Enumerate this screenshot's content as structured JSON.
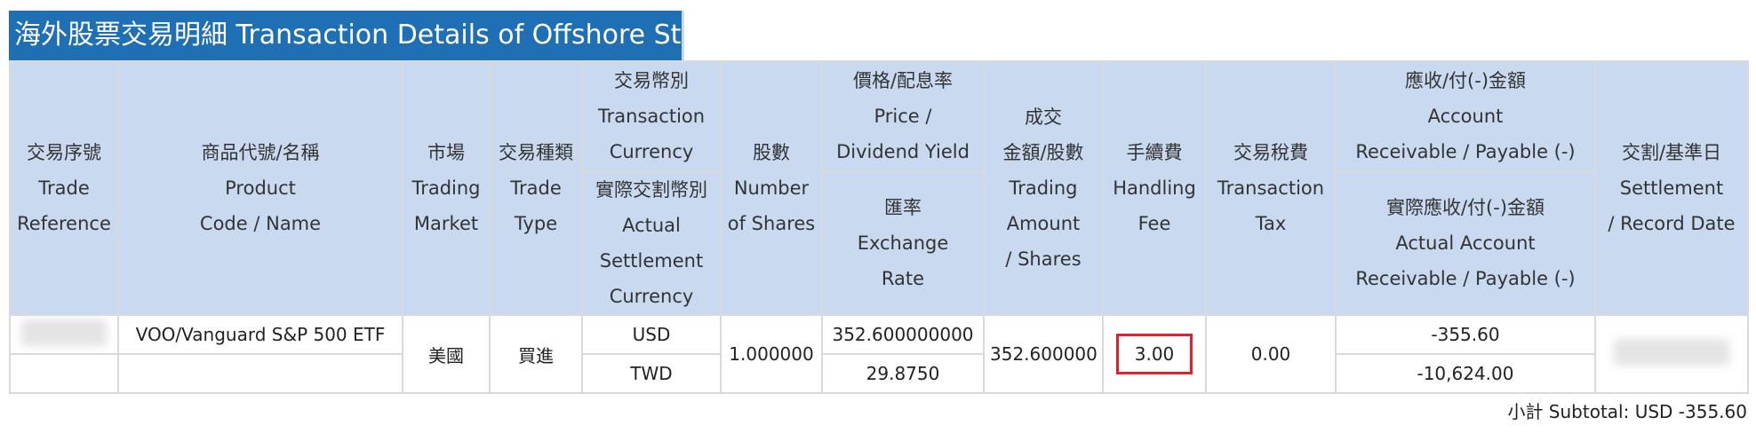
{
  "title": "海外股票交易明細 Transaction Details of Offshore Stocks",
  "headers": {
    "trade_reference": {
      "zh": "交易序號",
      "en1": "Trade",
      "en2": "Reference"
    },
    "product": {
      "zh": "商品代號/名稱",
      "en1": "Product",
      "en2": "Code / Name"
    },
    "market": {
      "zh": "市場",
      "en1": "Trading",
      "en2": "Market"
    },
    "trade_type": {
      "zh": "交易種類",
      "en1": "Trade",
      "en2": "Type"
    },
    "currency": {
      "zh": "交易幣別",
      "en1": "Transaction",
      "en2": "Currency"
    },
    "settle_currency": {
      "zh": "實際交割幣別",
      "en1": "Actual",
      "en2": "Settlement",
      "en3": "Currency"
    },
    "shares": {
      "zh": "股數",
      "en1": "Number",
      "en2": "of Shares"
    },
    "price": {
      "zh": "價格/配息率",
      "en1": "Price /",
      "en2": "Dividend Yield"
    },
    "exchange_rate": {
      "zh": "匯率",
      "en1": "Exchange",
      "en2": "Rate"
    },
    "amount": {
      "zh1": "成交",
      "zh2": "金額/股數",
      "en1": "Trading",
      "en2": "Amount",
      "en3": "/ Shares"
    },
    "fee": {
      "zh": "手續費",
      "en1": "Handling",
      "en2": "Fee"
    },
    "tax": {
      "zh": "交易稅費",
      "en1": "Transaction",
      "en2": "Tax"
    },
    "receivable": {
      "zh": "應收/付(-)金額",
      "en1": "Account",
      "en2": "Receivable / Payable (-)"
    },
    "actual_receivable": {
      "zh": "實際應收/付(-)金額",
      "en1": "Actual Account",
      "en2": "Receivable / Payable (-)"
    },
    "settlement": {
      "zh": "交割/基準日",
      "en1": "Settlement",
      "en2": "/ Record Date"
    }
  },
  "row": {
    "product": "VOO/Vanguard S&P 500 ETF",
    "market": "美國",
    "trade_type": "買進",
    "currency": "USD",
    "settle_currency": "TWD",
    "shares": "1.000000",
    "price": "352.600000000",
    "exchange_rate": "29.8750",
    "amount": "352.600000",
    "fee": "3.00",
    "tax": "0.00",
    "receivable": "-355.60",
    "actual_receivable": "-10,624.00"
  },
  "subtotal": "小計 Subtotal: USD -355.60"
}
